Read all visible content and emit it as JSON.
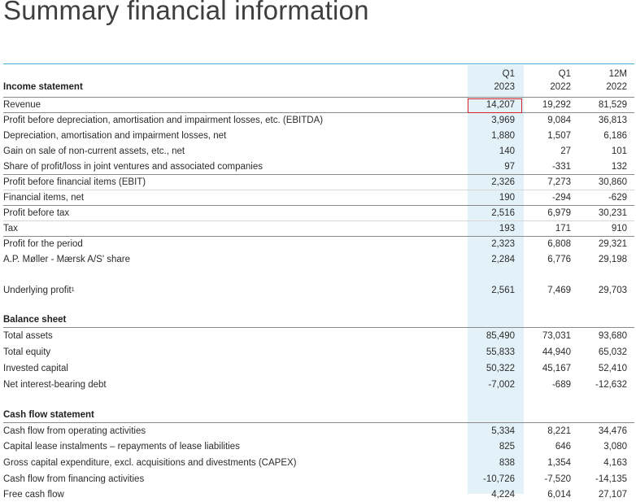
{
  "page": {
    "title": "Summary financial information"
  },
  "columns": [
    {
      "line1": "Q1",
      "line2": "2023"
    },
    {
      "line1": "Q1",
      "line2": "2022"
    },
    {
      "line1": "12M",
      "line2": "2022"
    }
  ],
  "income_statement": {
    "heading": "Income statement",
    "rows": [
      {
        "label": "Revenue",
        "values": [
          "14,207",
          "19,292",
          "81,529"
        ]
      },
      {
        "label": "Profit before depreciation, amortisation and impairment losses, etc. (EBITDA)",
        "values": [
          "3,969",
          "9,084",
          "36,813"
        ]
      },
      {
        "label": "Depreciation, amortisation and impairment losses, net",
        "values": [
          "1,880",
          "1,507",
          "6,186"
        ]
      },
      {
        "label": "Gain on sale of non-current assets, etc., net",
        "values": [
          "140",
          "27",
          "101"
        ]
      },
      {
        "label": "Share of profit/loss in joint ventures and associated companies",
        "values": [
          "97",
          "-331",
          "132"
        ]
      },
      {
        "label": "Profit before financial items (EBIT)",
        "values": [
          "2,326",
          "7,273",
          "30,860"
        ]
      },
      {
        "label": "Financial items, net",
        "values": [
          "190",
          "-294",
          "-629"
        ]
      },
      {
        "label": "Profit before tax",
        "values": [
          "2,516",
          "6,979",
          "30,231"
        ]
      },
      {
        "label": "Tax",
        "values": [
          "193",
          "171",
          "910"
        ]
      },
      {
        "label": "Profit for the period",
        "values": [
          "2,323",
          "6,808",
          "29,321"
        ]
      },
      {
        "label": "A.P. Møller - Mærsk A/S' share",
        "values": [
          "2,284",
          "6,776",
          "29,198"
        ]
      }
    ],
    "underlying": {
      "label": "Underlying profit",
      "footnote": "1",
      "values": [
        "2,561",
        "7,469",
        "29,703"
      ]
    }
  },
  "balance_sheet": {
    "heading": "Balance sheet",
    "rows": [
      {
        "label": "Total assets",
        "values": [
          "85,490",
          "73,031",
          "93,680"
        ]
      },
      {
        "label": "Total equity",
        "values": [
          "55,833",
          "44,940",
          "65,032"
        ]
      },
      {
        "label": "Invested capital",
        "values": [
          "50,322",
          "45,167",
          "52,410"
        ]
      },
      {
        "label": "Net interest-bearing debt",
        "values": [
          "-7,002",
          "-689",
          "-12,632"
        ]
      }
    ]
  },
  "cash_flow": {
    "heading": "Cash flow statement",
    "rows": [
      {
        "label": "Cash flow from operating activities",
        "values": [
          "5,334",
          "8,221",
          "34,476"
        ]
      },
      {
        "label": "Capital lease instalments – repayments of lease liabilities",
        "values": [
          "825",
          "646",
          "3,080"
        ]
      },
      {
        "label": "Gross capital expenditure, excl. acquisitions and divestments (CAPEX)",
        "values": [
          "838",
          "1,354",
          "4,163"
        ]
      },
      {
        "label": "Cash flow from financing activities",
        "values": [
          "-10,726",
          "-7,520",
          "-14,135"
        ]
      },
      {
        "label": "Free cash flow",
        "values": [
          "4,224",
          "6,014",
          "27,107"
        ]
      }
    ]
  },
  "colors": {
    "teal_rule": "#42b0d5",
    "highlight_column": "#e3f2f9",
    "revenue_outline": "#d6212b"
  }
}
